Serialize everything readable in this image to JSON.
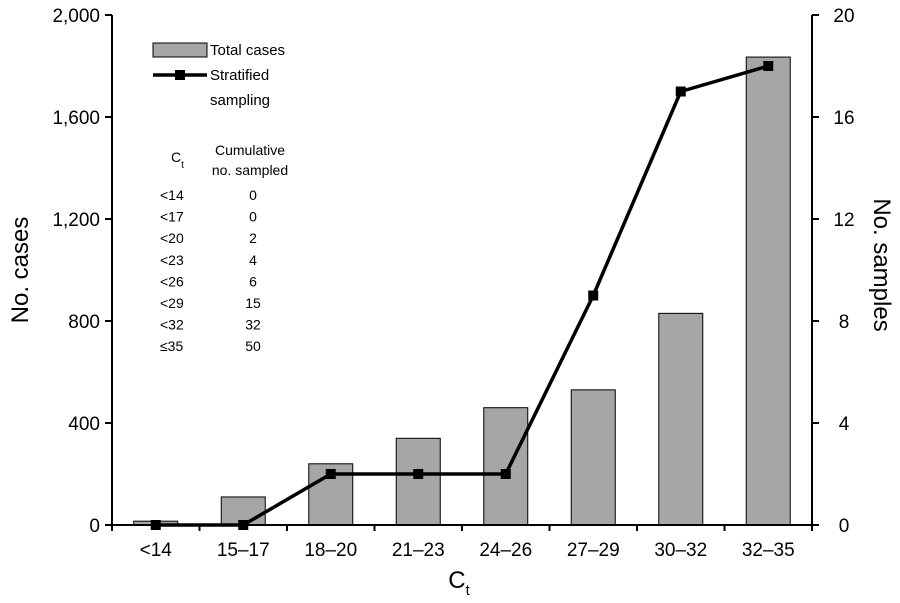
{
  "chart_data": {
    "type": "bar",
    "categories": [
      "<14",
      "15–17",
      "18–20",
      "21–23",
      "24–26",
      "27–29",
      "30–32",
      "32–35"
    ],
    "series": [
      {
        "name": "Total cases",
        "type": "bar",
        "axis": "left",
        "color": "#a6a6a6",
        "values": [
          15,
          110,
          240,
          340,
          460,
          530,
          830,
          1835
        ]
      },
      {
        "name": "Stratified sampling",
        "type": "line",
        "axis": "right",
        "color": "#000000",
        "values": [
          0,
          0,
          2,
          2,
          2,
          9,
          17,
          18
        ]
      }
    ],
    "xlabel": "C",
    "xlabel_sub": "t",
    "ylabel": "No. cases",
    "ylabel_right": "No. samples",
    "ylim": [
      0,
      2000
    ],
    "yticks": [
      "0",
      "400",
      "800",
      "1,200",
      "1,600",
      "2,000"
    ],
    "ylim_right": [
      0,
      20
    ],
    "yticks_right": [
      "0",
      "4",
      "8",
      "12",
      "16",
      "20"
    ],
    "grid": false,
    "legend": {
      "position": "top-left",
      "entries": [
        {
          "label": "Total cases",
          "label_lines": [
            "Total cases"
          ]
        },
        {
          "label": "Stratified sampling",
          "label_lines": [
            "Stratified",
            "sampling"
          ]
        }
      ]
    },
    "annotation_table": {
      "col1_header": "C",
      "col1_header_sub": "t",
      "col2_header_lines": [
        "Cumulative",
        "no. sampled"
      ],
      "rows": [
        [
          "<14",
          "0"
        ],
        [
          "<17",
          "0"
        ],
        [
          "<20",
          "2"
        ],
        [
          "<23",
          "4"
        ],
        [
          "<26",
          "6"
        ],
        [
          "<29",
          "15"
        ],
        [
          "<32",
          "32"
        ],
        [
          "≤35",
          "50"
        ]
      ]
    }
  }
}
